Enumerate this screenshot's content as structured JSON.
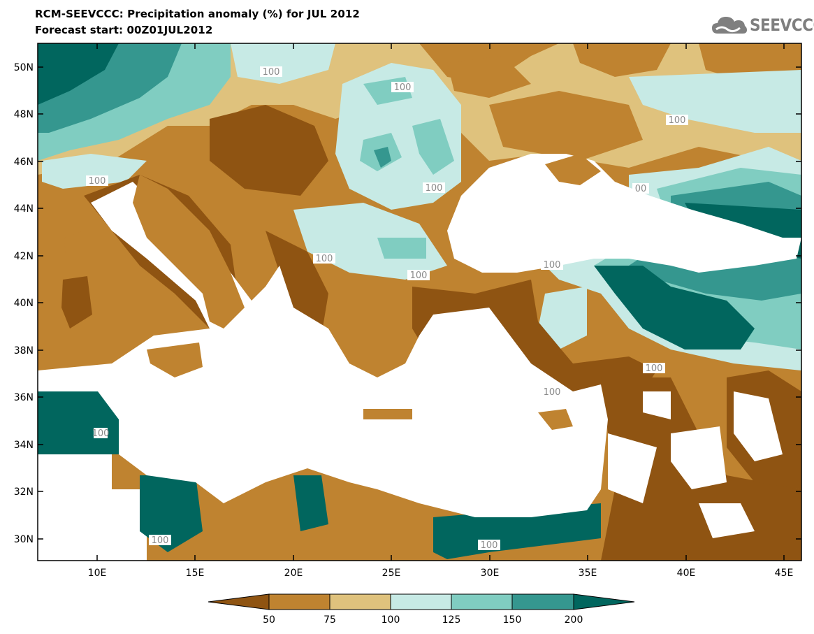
{
  "header": {
    "title_line1": "RCM-SEEVCCC: Precipitation anomaly (%) for JUL 2012",
    "title_line2": "Forecast start: 00Z01JUL2012",
    "logo_text": "SEEVCCC"
  },
  "map": {
    "lat_labels": [
      "50N",
      "48N",
      "46N",
      "44N",
      "42N",
      "40N",
      "38N",
      "36N",
      "34N",
      "32N",
      "30N"
    ],
    "lon_labels": [
      "10E",
      "15E",
      "20E",
      "25E",
      "30E",
      "35E",
      "40E",
      "45E"
    ],
    "contour_labels": [
      "100",
      "100",
      "100",
      "100",
      "100",
      "00",
      "100",
      "100",
      "100",
      "100",
      "100",
      "100",
      "100",
      "100"
    ]
  },
  "legend": {
    "thresholds": [
      "50",
      "75",
      "100",
      "125",
      "150",
      "200"
    ],
    "colors": [
      "#8f5412",
      "#bf8330",
      "#dfc27d",
      "#c7eae5",
      "#80cdc1",
      "#35978f",
      "#01665e"
    ]
  }
}
